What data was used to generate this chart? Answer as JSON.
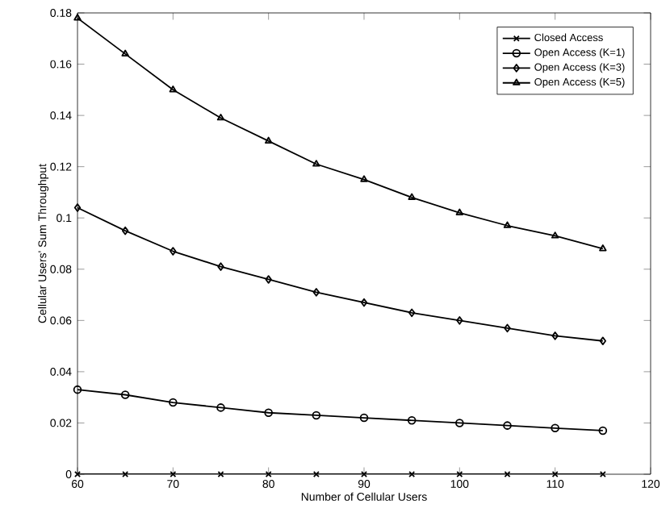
{
  "chart_data": {
    "type": "line",
    "xlabel": "Number of Cellular Users",
    "ylabel": "Cellular Users' Sum Throughput",
    "x": [
      60,
      65,
      70,
      75,
      80,
      85,
      90,
      95,
      100,
      105,
      110,
      115
    ],
    "series": [
      {
        "name": "Closed Access",
        "color": "#000000",
        "marker": "cross",
        "values": [
          0,
          0,
          0,
          0,
          0,
          0,
          0,
          0,
          0,
          0,
          0,
          0
        ]
      },
      {
        "name": "Open Access (K=1)",
        "color": "#000000",
        "marker": "circle",
        "values": [
          0.033,
          0.031,
          0.028,
          0.026,
          0.024,
          0.023,
          0.022,
          0.021,
          0.02,
          0.019,
          0.018,
          0.017
        ]
      },
      {
        "name": "Open Access (K=3)",
        "color": "#000000",
        "marker": "diamond",
        "values": [
          0.104,
          0.095,
          0.087,
          0.081,
          0.076,
          0.071,
          0.067,
          0.063,
          0.06,
          0.057,
          0.054,
          0.052
        ]
      },
      {
        "name": "Open Access (K=5)",
        "color": "#000000",
        "marker": "triangle",
        "values": [
          0.178,
          0.164,
          0.15,
          0.139,
          0.13,
          0.121,
          0.115,
          0.108,
          0.102,
          0.097,
          0.093,
          0.088
        ]
      }
    ],
    "xlim": [
      60,
      120
    ],
    "xticks": [
      60,
      70,
      80,
      90,
      100,
      110,
      120
    ],
    "ylim": [
      0,
      0.18
    ],
    "yticks": [
      0,
      0.02,
      0.04,
      0.06,
      0.08,
      0.1,
      0.12,
      0.14,
      0.16,
      0.18
    ],
    "legend": "top right",
    "line_style": "solid",
    "grid": false
  }
}
